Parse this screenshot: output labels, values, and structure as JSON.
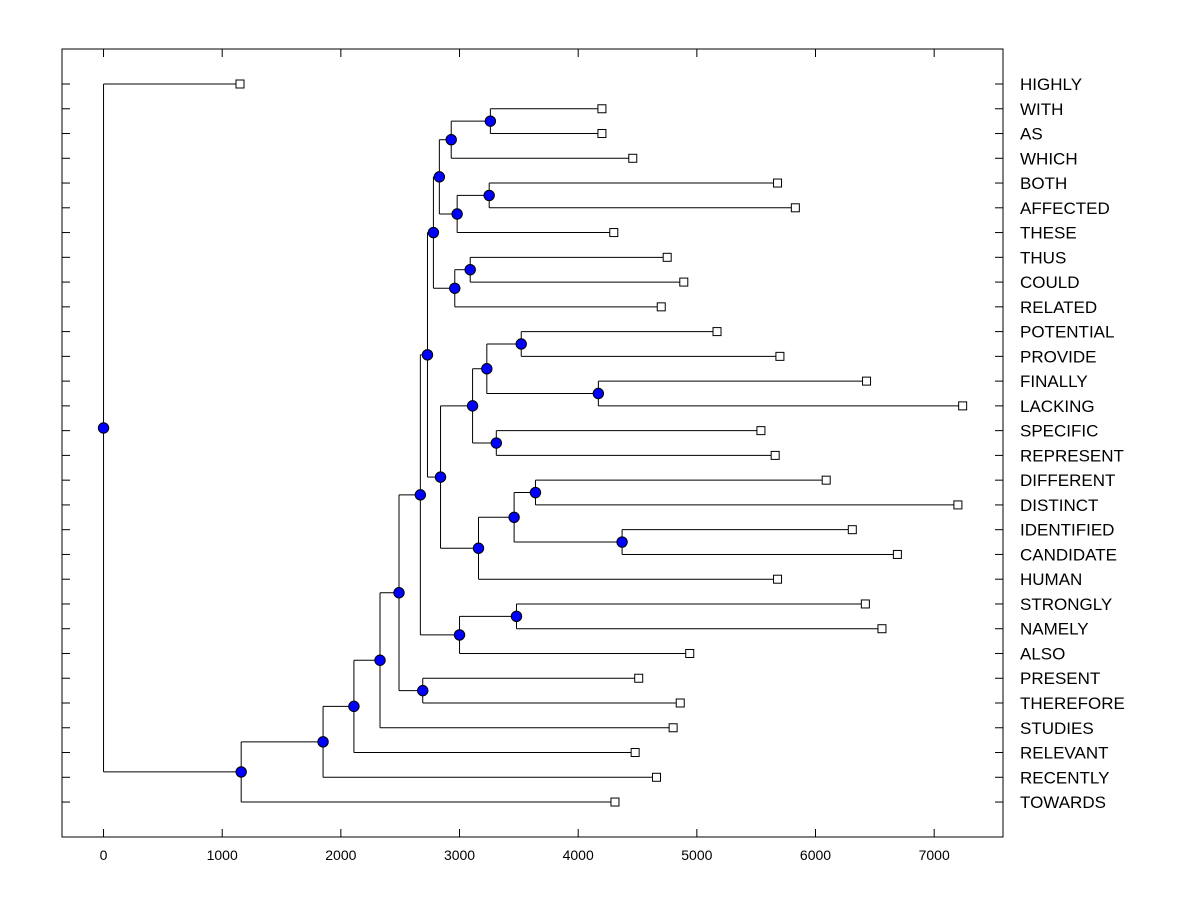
{
  "chart_data": {
    "type": "dendrogram",
    "title": "",
    "xlabel": "",
    "ylabel": "",
    "xlim": [
      -350,
      7580
    ],
    "xticks": [
      0,
      1000,
      2000,
      3000,
      4000,
      5000,
      6000,
      7000
    ],
    "leaves": [
      {
        "label": "HIGHLY",
        "x": 1150
      },
      {
        "label": "WITH",
        "x": 4200
      },
      {
        "label": "AS",
        "x": 4200
      },
      {
        "label": "WHICH",
        "x": 4460
      },
      {
        "label": "BOTH",
        "x": 5680
      },
      {
        "label": "AFFECTED",
        "x": 5830
      },
      {
        "label": "THESE",
        "x": 4300
      },
      {
        "label": "THUS",
        "x": 4750
      },
      {
        "label": "COULD",
        "x": 4890
      },
      {
        "label": "RELATED",
        "x": 4700
      },
      {
        "label": "POTENTIAL",
        "x": 5170
      },
      {
        "label": "PROVIDE",
        "x": 5700
      },
      {
        "label": "FINALLY",
        "x": 6430
      },
      {
        "label": "LACKING",
        "x": 7240
      },
      {
        "label": "SPECIFIC",
        "x": 5540
      },
      {
        "label": "REPRESENT",
        "x": 5660
      },
      {
        "label": "DIFFERENT",
        "x": 6090
      },
      {
        "label": "DISTINCT",
        "x": 7200
      },
      {
        "label": "IDENTIFIED",
        "x": 6310
      },
      {
        "label": "CANDIDATE",
        "x": 6690
      },
      {
        "label": "HUMAN",
        "x": 5680
      },
      {
        "label": "STRONGLY",
        "x": 6420
      },
      {
        "label": "NAMELY",
        "x": 6560
      },
      {
        "label": "ALSO",
        "x": 4940
      },
      {
        "label": "PRESENT",
        "x": 4510
      },
      {
        "label": "THEREFORE",
        "x": 4860
      },
      {
        "label": "STUDIES",
        "x": 4800
      },
      {
        "label": "RELEVANT",
        "x": 4480
      },
      {
        "label": "RECENTLY",
        "x": 4660
      },
      {
        "label": "TOWARDS",
        "x": 4310
      }
    ],
    "merges": [
      {
        "id": "n1",
        "x": 3260,
        "children": [
          "WITH",
          "AS"
        ]
      },
      {
        "id": "n2",
        "x": 2930,
        "children": [
          "n1",
          "WHICH"
        ]
      },
      {
        "id": "n3",
        "x": 3250,
        "children": [
          "BOTH",
          "AFFECTED"
        ]
      },
      {
        "id": "n4",
        "x": 2980,
        "children": [
          "n3",
          "THESE"
        ]
      },
      {
        "id": "n5",
        "x": 2830,
        "children": [
          "n2",
          "n4"
        ]
      },
      {
        "id": "n6",
        "x": 3090,
        "children": [
          "THUS",
          "COULD"
        ]
      },
      {
        "id": "n7",
        "x": 2960,
        "children": [
          "n6",
          "RELATED"
        ]
      },
      {
        "id": "n8",
        "x": 2780,
        "children": [
          "n5",
          "n7"
        ]
      },
      {
        "id": "n9",
        "x": 3520,
        "children": [
          "POTENTIAL",
          "PROVIDE"
        ]
      },
      {
        "id": "n10",
        "x": 4170,
        "children": [
          "FINALLY",
          "LACKING"
        ]
      },
      {
        "id": "n11",
        "x": 3230,
        "children": [
          "n9",
          "n10"
        ]
      },
      {
        "id": "n12",
        "x": 3310,
        "children": [
          "SPECIFIC",
          "REPRESENT"
        ]
      },
      {
        "id": "n13",
        "x": 3110,
        "children": [
          "n11",
          "n12"
        ]
      },
      {
        "id": "n14",
        "x": 3640,
        "children": [
          "DIFFERENT",
          "DISTINCT"
        ]
      },
      {
        "id": "n15",
        "x": 4370,
        "children": [
          "IDENTIFIED",
          "CANDIDATE"
        ]
      },
      {
        "id": "n16",
        "x": 3460,
        "children": [
          "n14",
          "n15"
        ]
      },
      {
        "id": "n17",
        "x": 3160,
        "children": [
          "n16",
          "HUMAN"
        ]
      },
      {
        "id": "n18",
        "x": 2840,
        "children": [
          "n13",
          "n17"
        ]
      },
      {
        "id": "n19",
        "x": 2730,
        "children": [
          "n8",
          "n18"
        ]
      },
      {
        "id": "n20",
        "x": 3480,
        "children": [
          "STRONGLY",
          "NAMELY"
        ]
      },
      {
        "id": "n21",
        "x": 3000,
        "children": [
          "n20",
          "ALSO"
        ]
      },
      {
        "id": "n22",
        "x": 2670,
        "children": [
          "n19",
          "n21"
        ]
      },
      {
        "id": "n23",
        "x": 2690,
        "children": [
          "PRESENT",
          "THEREFORE"
        ]
      },
      {
        "id": "n24",
        "x": 2490,
        "children": [
          "n22",
          "n23"
        ]
      },
      {
        "id": "n25",
        "x": 2330,
        "children": [
          "n24",
          "STUDIES"
        ]
      },
      {
        "id": "n26",
        "x": 2110,
        "children": [
          "n25",
          "RELEVANT"
        ]
      },
      {
        "id": "n27",
        "x": 1850,
        "children": [
          "n26",
          "RECENTLY"
        ]
      },
      {
        "id": "n28",
        "x": 1160,
        "children": [
          "n27",
          "TOWARDS"
        ]
      },
      {
        "id": "n29",
        "x": 0,
        "children": [
          "HIGHLY",
          "n28"
        ]
      }
    ],
    "grid": false,
    "legend": "none",
    "colors": {
      "node_fill": "#0000ff",
      "node_stroke": "#000000",
      "leaf_fill": "#ffffff",
      "line": "#000000",
      "background": "#ffffff"
    }
  }
}
